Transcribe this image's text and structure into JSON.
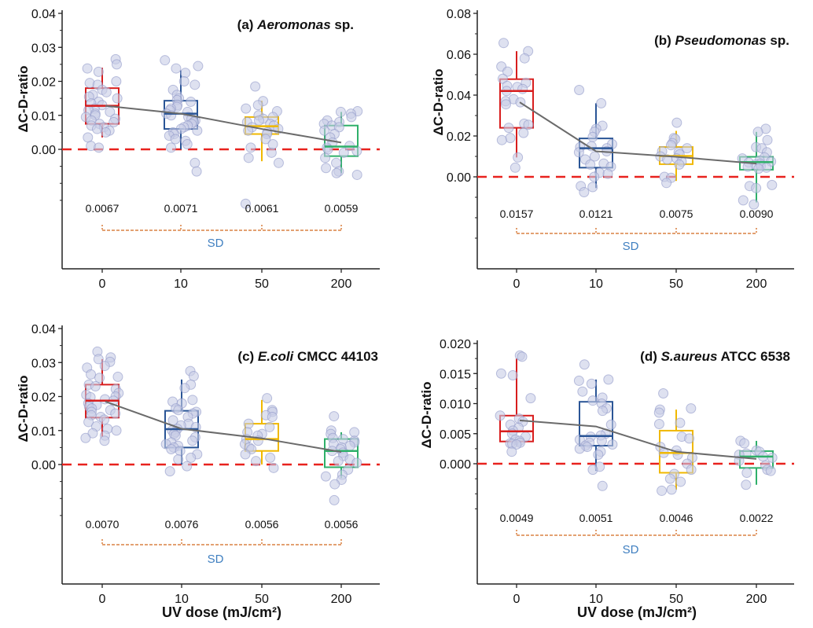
{
  "figure": {
    "shared_xlabel": "UV dose (mJ/cm²)",
    "shared_ylabel": "ΔC-D-ratio",
    "group_colors": [
      "#d81e1e",
      "#2a5596",
      "#f0b800",
      "#2fb06a"
    ],
    "point_fill": "#c8cde6",
    "point_stroke": "#8f97c8",
    "zero_line_color": "#e8221e",
    "mean_line_color": "#6b6b6b",
    "bracket_color": "#d2691e",
    "sd_label_color": "#3f7fc0"
  },
  "chart_data": [
    {
      "type": "box",
      "panel": "a",
      "title_prefix": "(a) ",
      "title_italic": "Aeromonas",
      "title_suffix": " sp.",
      "xlabel": "",
      "ylabel": "ΔC-D-ratio",
      "categories": [
        "0",
        "10",
        "50",
        "200"
      ],
      "yticks": [
        "0.00",
        "0.01",
        "0.02",
        "0.03",
        "0.04"
      ],
      "ylim": [
        -0.036,
        0.04
      ],
      "reference_line": 0,
      "boxes": [
        {
          "q1": 0.0075,
          "median": 0.0128,
          "q3": 0.018,
          "whisker_low": 0.0035,
          "whisker_high": 0.024,
          "mean": 0.0128
        },
        {
          "q1": 0.006,
          "median": 0.0105,
          "q3": 0.0143,
          "whisker_low": 0.0,
          "whisker_high": 0.0232,
          "mean": 0.0105
        },
        {
          "q1": 0.0045,
          "median": 0.0068,
          "q3": 0.0095,
          "whisker_low": -0.0035,
          "whisker_high": 0.0143,
          "mean": 0.006
        },
        {
          "q1": -0.002,
          "median": 0.0008,
          "q3": 0.007,
          "whisker_low": -0.007,
          "whisker_high": 0.011,
          "mean": 0.002
        }
      ],
      "points": [
        [
          0.0265,
          0.025,
          0.0238,
          0.0228,
          0.02,
          0.0195,
          0.019,
          0.0175,
          0.0168,
          0.016,
          0.0155,
          0.015,
          0.014,
          0.0135,
          0.013,
          0.012,
          0.0115,
          0.011,
          0.0105,
          0.01,
          0.0095,
          0.009,
          0.0085,
          0.008,
          0.0075,
          0.007,
          0.0065,
          0.006,
          0.0055,
          0.005,
          0.0035,
          0.001,
          0.0005
        ],
        [
          0.0262,
          0.0245,
          0.0238,
          0.0225,
          0.02,
          0.019,
          0.0175,
          0.016,
          0.015,
          0.0145,
          0.014,
          0.013,
          0.0125,
          0.012,
          0.0115,
          0.011,
          0.0105,
          0.01,
          0.0095,
          0.009,
          0.0085,
          0.008,
          0.0075,
          0.007,
          0.0065,
          0.006,
          0.0055,
          0.005,
          0.0045,
          0.004,
          0.003,
          0.0025,
          0.0015,
          0.0005,
          -0.004,
          -0.0065
        ],
        [
          0.0185,
          0.0142,
          0.013,
          0.012,
          0.0112,
          0.01,
          0.0095,
          0.009,
          0.0085,
          0.008,
          0.0075,
          0.007,
          0.0065,
          0.006,
          0.0055,
          0.005,
          0.0045,
          0.003,
          0.0015,
          0.0005,
          -0.001,
          -0.0025,
          -0.004,
          -0.016
        ],
        [
          0.0112,
          0.011,
          0.0105,
          0.0095,
          0.0085,
          0.008,
          0.0075,
          0.007,
          0.0065,
          0.0055,
          0.0045,
          0.0035,
          0.002,
          0.001,
          0.0005,
          0.0,
          -0.0005,
          -0.001,
          -0.0025,
          -0.004,
          -0.0055,
          -0.0065,
          -0.007,
          -0.0075
        ]
      ],
      "sd_values": [
        "0.0067",
        "0.0071",
        "0.0061",
        "0.0059"
      ],
      "sd_label": "SD"
    },
    {
      "type": "box",
      "panel": "b",
      "title_prefix": "(b) ",
      "title_italic": "Pseudomonas",
      "title_suffix": " sp.",
      "xlabel": "",
      "ylabel": "ΔC-D-ratio",
      "categories": [
        "0",
        "10",
        "50",
        "200"
      ],
      "yticks": [
        "0.00",
        "0.02",
        "0.04",
        "0.06",
        "0.08"
      ],
      "ylim": [
        -0.045,
        0.08
      ],
      "reference_line": 0,
      "boxes": [
        {
          "q1": 0.024,
          "median": 0.042,
          "q3": 0.0478,
          "whisker_low": 0.0095,
          "whisker_high": 0.0615,
          "mean": 0.0365
        },
        {
          "q1": 0.0045,
          "median": 0.014,
          "q3": 0.0188,
          "whisker_low": -0.0055,
          "whisker_high": 0.036,
          "mean": 0.0125
        },
        {
          "q1": 0.0062,
          "median": 0.0102,
          "q3": 0.0146,
          "whisker_low": -0.002,
          "whisker_high": 0.0225,
          "mean": 0.0098
        },
        {
          "q1": 0.0035,
          "median": 0.0072,
          "q3": 0.0098,
          "whisker_low": -0.0125,
          "whisker_high": 0.022,
          "mean": 0.0065
        }
      ],
      "points": [
        [
          0.0655,
          0.0615,
          0.058,
          0.054,
          0.0515,
          0.048,
          0.046,
          0.0445,
          0.044,
          0.043,
          0.042,
          0.038,
          0.037,
          0.0365,
          0.0355,
          0.026,
          0.0255,
          0.024,
          0.0215,
          0.019,
          0.018,
          0.0095,
          0.0045
        ],
        [
          0.0425,
          0.036,
          0.025,
          0.0235,
          0.022,
          0.0195,
          0.016,
          0.015,
          0.0145,
          0.014,
          0.0125,
          0.012,
          0.01,
          0.0085,
          0.0065,
          0.006,
          0.005,
          0.002,
          0.0015,
          0.0,
          -0.0045,
          -0.005,
          -0.0075
        ],
        [
          0.0265,
          0.019,
          0.0185,
          0.0165,
          0.0155,
          0.014,
          0.0125,
          0.012,
          0.011,
          0.01,
          0.009,
          0.0085,
          0.0075,
          0.006,
          0.0,
          -0.0005,
          -0.003
        ],
        [
          0.0235,
          0.022,
          0.018,
          0.0145,
          0.014,
          0.012,
          0.0095,
          0.009,
          0.008,
          0.0075,
          0.007,
          0.0065,
          0.006,
          0.0055,
          0.005,
          0.0045,
          0.004,
          -0.004,
          -0.0045,
          -0.0055,
          -0.0115,
          -0.0135
        ]
      ],
      "sd_values": [
        "0.0157",
        "0.0121",
        "0.0075",
        "0.0090"
      ],
      "sd_label": "SD"
    },
    {
      "type": "box",
      "panel": "c",
      "title_prefix": "(c) ",
      "title_italic": "E.coli",
      "title_suffix": " CMCC 44103",
      "xlabel": "UV dose (mJ/cm²)",
      "ylabel": "ΔC-D-ratio",
      "categories": [
        "0",
        "10",
        "50",
        "200"
      ],
      "yticks": [
        "0.00",
        "0.01",
        "0.02",
        "0.03",
        "0.04"
      ],
      "ylim": [
        -0.0352,
        0.04
      ],
      "reference_line": 0,
      "boxes": [
        {
          "q1": 0.0138,
          "median": 0.0188,
          "q3": 0.0235,
          "whisker_low": 0.0082,
          "whisker_high": 0.031,
          "mean": 0.0185
        },
        {
          "q1": 0.005,
          "median": 0.0104,
          "q3": 0.0158,
          "whisker_low": 0.0,
          "whisker_high": 0.025,
          "mean": 0.0105
        },
        {
          "q1": 0.004,
          "median": 0.0075,
          "q3": 0.012,
          "whisker_low": 0.0,
          "whisker_high": 0.019,
          "mean": 0.0077
        },
        {
          "q1": -0.0008,
          "median": 0.004,
          "q3": 0.0075,
          "whisker_low": -0.004,
          "whisker_high": 0.0095,
          "mean": 0.0037
        }
      ],
      "points": [
        [
          0.0332,
          0.0315,
          0.031,
          0.0302,
          0.029,
          0.0285,
          0.0265,
          0.0258,
          0.0255,
          0.0235,
          0.023,
          0.0222,
          0.021,
          0.0205,
          0.02,
          0.0198,
          0.0192,
          0.0188,
          0.018,
          0.0175,
          0.017,
          0.0165,
          0.016,
          0.0155,
          0.015,
          0.0145,
          0.014,
          0.0132,
          0.0125,
          0.0112,
          0.0105,
          0.01,
          0.0092,
          0.0085,
          0.0078,
          0.007
        ],
        [
          0.0275,
          0.026,
          0.0235,
          0.0225,
          0.019,
          0.0185,
          0.018,
          0.0165,
          0.016,
          0.0155,
          0.015,
          0.014,
          0.013,
          0.012,
          0.0115,
          0.011,
          0.0105,
          0.01,
          0.0095,
          0.009,
          0.0085,
          0.008,
          0.007,
          0.0065,
          0.006,
          0.0055,
          0.005,
          0.0045,
          0.004,
          0.003,
          0.002,
          0.0015,
          -0.0005,
          -0.002
        ],
        [
          0.0195,
          0.016,
          0.0155,
          0.0145,
          0.014,
          0.012,
          0.011,
          0.0095,
          0.009,
          0.0085,
          0.0075,
          0.007,
          0.006,
          0.005,
          0.0045,
          0.003,
          0.002,
          0.001,
          -0.001
        ],
        [
          0.0142,
          0.01,
          0.0095,
          0.009,
          0.0078,
          0.0075,
          0.007,
          0.0065,
          0.006,
          0.0055,
          0.005,
          0.0045,
          0.004,
          0.0035,
          0.0025,
          0.0015,
          0.001,
          0.0005,
          -0.0015,
          -0.003,
          -0.0035,
          -0.0045,
          -0.0058,
          -0.0105
        ]
      ],
      "sd_values": [
        "0.0070",
        "0.0076",
        "0.0056",
        "0.0056"
      ],
      "sd_label": "SD"
    },
    {
      "type": "box",
      "panel": "d",
      "title_prefix": "(d) ",
      "title_italic": "S.aureus",
      "title_suffix": " ATCC 6538",
      "xlabel": "UV dose (mJ/cm²)",
      "ylabel": "ΔC-D-ratio",
      "categories": [
        "0",
        "10",
        "50",
        "200"
      ],
      "yticks": [
        "0.000",
        "0.005",
        "0.010",
        "0.015",
        "0.020"
      ],
      "ylim": [
        -0.02,
        0.0225
      ],
      "reference_line": 0,
      "boxes": [
        {
          "q1": 0.0037,
          "median": 0.0054,
          "q3": 0.008,
          "whisker_low": 0.0032,
          "whisker_high": 0.0175,
          "mean": 0.0072
        },
        {
          "q1": 0.003,
          "median": 0.0046,
          "q3": 0.0103,
          "whisker_low": -0.0012,
          "whisker_high": 0.014,
          "mean": 0.0062
        },
        {
          "q1": -0.0015,
          "median": 0.0018,
          "q3": 0.0055,
          "whisker_low": -0.0043,
          "whisker_high": 0.009,
          "mean": 0.002
        },
        {
          "q1": -0.0007,
          "median": 0.0012,
          "q3": 0.0021,
          "whisker_low": -0.0035,
          "whisker_high": 0.0038,
          "mean": 0.0008
        }
      ],
      "points": [
        [
          0.018,
          0.0178,
          0.015,
          0.0147,
          0.0109,
          0.008,
          0.0075,
          0.007,
          0.0065,
          0.006,
          0.0055,
          0.005,
          0.0045,
          0.004,
          0.0038,
          0.0035,
          0.0034,
          0.0033,
          0.0032,
          0.002
        ],
        [
          0.0165,
          0.014,
          0.0138,
          0.0133,
          0.012,
          0.011,
          0.0105,
          0.01,
          0.0092,
          0.0088,
          0.0065,
          0.005,
          0.0047,
          0.0045,
          0.004,
          0.0038,
          0.0035,
          0.0032,
          0.003,
          0.0028,
          0.0025,
          0.002,
          0.0015,
          -0.0005,
          -0.001,
          -0.0037
        ],
        [
          0.0117,
          0.0092,
          0.009,
          0.0085,
          0.0068,
          0.0066,
          0.0045,
          0.0042,
          0.0028,
          0.0022,
          0.0018,
          0.0015,
          0.001,
          0.0,
          -0.001,
          -0.0017,
          -0.0025,
          -0.003,
          -0.0043,
          -0.0045
        ],
        [
          0.0038,
          0.0034,
          0.0022,
          0.002,
          0.0017,
          0.0015,
          0.0012,
          0.001,
          0.0005,
          -0.0003,
          -0.001,
          -0.0012,
          -0.0015,
          -0.0035
        ]
      ],
      "sd_values": [
        "0.0049",
        "0.0051",
        "0.0046",
        "0.0022"
      ],
      "sd_label": "SD"
    }
  ]
}
